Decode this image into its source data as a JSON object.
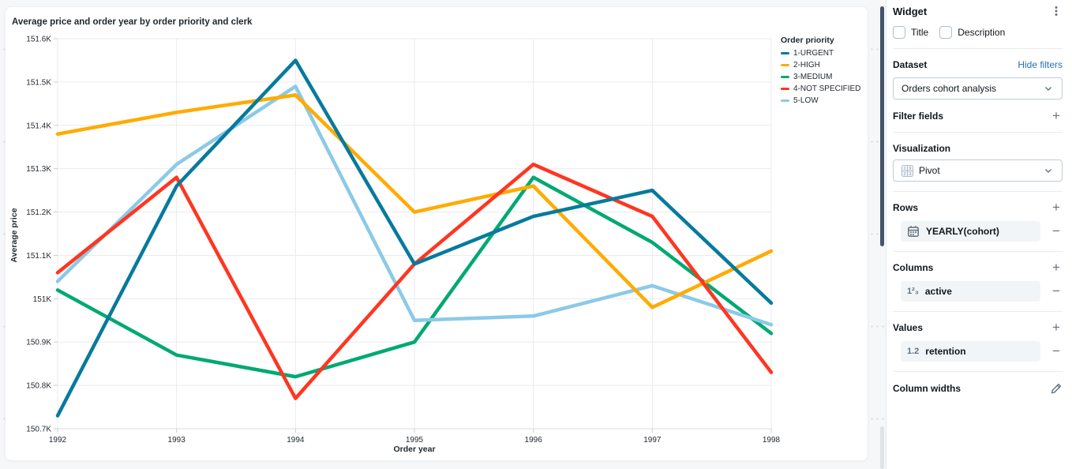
{
  "chart_data": {
    "type": "line",
    "title": "Average price and order year by order priority and clerk",
    "xlabel": "Order year",
    "ylabel": "Average price",
    "x": [
      1992,
      1993,
      1994,
      1995,
      1996,
      1997,
      1998
    ],
    "ylim": [
      150.7,
      151.6
    ],
    "ytick_step": 0.1,
    "ytick_suffix": "K",
    "grid": true,
    "legend_title": "Order priority",
    "legend_position": "right",
    "series": [
      {
        "name": "1-URGENT",
        "color": "#077A9D",
        "values": [
          150.73,
          151.26,
          151.55,
          151.08,
          151.19,
          151.25,
          150.99
        ]
      },
      {
        "name": "2-HIGH",
        "color": "#FFAB00",
        "values": [
          151.38,
          151.43,
          151.47,
          151.2,
          151.26,
          150.98,
          151.11
        ]
      },
      {
        "name": "3-MEDIUM",
        "color": "#00A972",
        "values": [
          151.02,
          150.87,
          150.82,
          150.9,
          151.28,
          151.13,
          150.92
        ]
      },
      {
        "name": "4-NOT SPECIFIED",
        "color": "#FF3621",
        "values": [
          151.06,
          151.28,
          150.77,
          151.08,
          151.31,
          151.19,
          150.83
        ]
      },
      {
        "name": "5-LOW",
        "color": "#8BCAE7",
        "values": [
          151.04,
          151.31,
          151.49,
          150.95,
          150.96,
          151.03,
          150.94
        ]
      }
    ]
  },
  "panel": {
    "title": "Widget",
    "checkboxes": [
      {
        "label": "Title",
        "checked": false
      },
      {
        "label": "Description",
        "checked": false
      }
    ],
    "dataset": {
      "label": "Dataset",
      "link": "Hide filters",
      "selected": "Orders cohort analysis"
    },
    "filter_fields": {
      "label": "Filter fields"
    },
    "visualization": {
      "label": "Visualization",
      "selected": "Pivot"
    },
    "rows": {
      "label": "Rows",
      "items": [
        {
          "name": "YEARLY(cohort)"
        }
      ]
    },
    "columns": {
      "label": "Columns",
      "items": [
        {
          "name": "active"
        }
      ]
    },
    "values": {
      "label": "Values",
      "items": [
        {
          "name": "retention"
        }
      ]
    },
    "column_widths": {
      "label": "Column widths"
    }
  },
  "icons": {
    "kebab": "⋮",
    "plus": "+",
    "minus": "−",
    "integer_field": "1²₃",
    "decimal_field": "1.2"
  },
  "colors": {
    "link": "#2272B4",
    "icon_gray": "#5F7281",
    "scrollbar": "#44546A"
  }
}
